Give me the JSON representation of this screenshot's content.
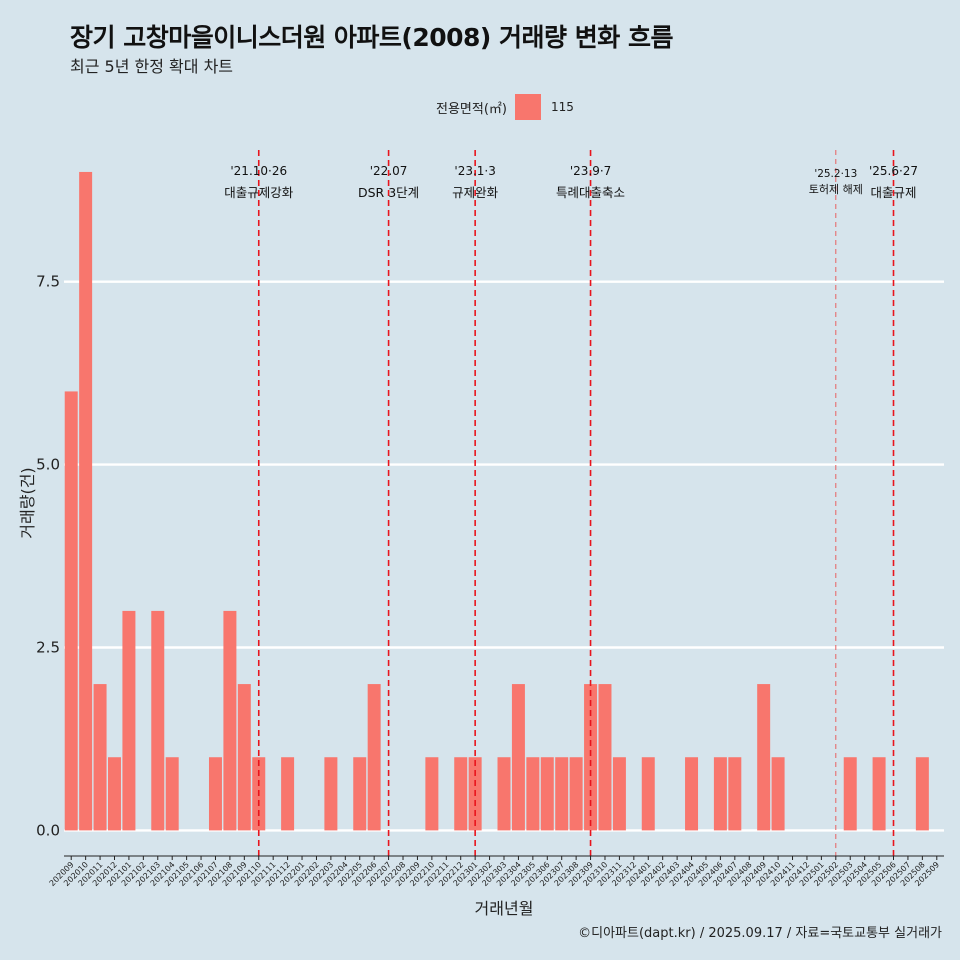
{
  "header": {
    "title": "장기 고창마을이니스더원 아파트(2008) 거래량 변화 흐름",
    "subtitle": "최근 5년 한정 확대 차트"
  },
  "legend": {
    "title": "전용면적(㎡)",
    "label": "115",
    "color": "#f8766d"
  },
  "footer": {
    "caption": "©디아파트(dapt.kr) / 2025.09.17 / 자료=국토교통부 실거래가"
  },
  "chart_data": {
    "type": "bar",
    "xlabel": "거래년월",
    "ylabel": "거래량(건)",
    "ylim": [
      -0.35,
      9.3
    ],
    "yticks": [
      0.0,
      2.5,
      5.0,
      7.5
    ],
    "ytick_labels": [
      "0.0",
      "2.5",
      "5.0",
      "7.5"
    ],
    "grid": true,
    "categories": [
      "202009",
      "202010",
      "202011",
      "202012",
      "202101",
      "202102",
      "202103",
      "202104",
      "202105",
      "202106",
      "202107",
      "202108",
      "202109",
      "202110",
      "202111",
      "202112",
      "202201",
      "202202",
      "202203",
      "202204",
      "202205",
      "202206",
      "202207",
      "202208",
      "202209",
      "202210",
      "202211",
      "202212",
      "202301",
      "202302",
      "202303",
      "202304",
      "202305",
      "202306",
      "202307",
      "202308",
      "202309",
      "202310",
      "202311",
      "202312",
      "202401",
      "202402",
      "202403",
      "202404",
      "202405",
      "202406",
      "202407",
      "202408",
      "202409",
      "202410",
      "202411",
      "202412",
      "202501",
      "202502",
      "202503",
      "202504",
      "202505",
      "202506",
      "202507",
      "202508",
      "202509"
    ],
    "series": [
      {
        "name": "115",
        "values": [
          6,
          9,
          2,
          1,
          3,
          0,
          3,
          1,
          0,
          0,
          1,
          3,
          2,
          1,
          0,
          1,
          0,
          0,
          1,
          0,
          1,
          2,
          0,
          0,
          0,
          1,
          0,
          1,
          1,
          0,
          1,
          2,
          1,
          1,
          1,
          1,
          2,
          2,
          1,
          0,
          1,
          0,
          0,
          1,
          0,
          1,
          1,
          0,
          2,
          1,
          0,
          0,
          0,
          0,
          1,
          0,
          1,
          0,
          0,
          1,
          0
        ]
      }
    ],
    "events": [
      {
        "category": "202110",
        "date": "'21.10·26",
        "label": "대출규제강화",
        "style": "bold"
      },
      {
        "category": "202207",
        "date": "'22.07",
        "label": "DSR 3단계",
        "style": "bold"
      },
      {
        "category": "202301",
        "date": "'23.1·3",
        "label": "규제완화",
        "style": "bold"
      },
      {
        "category": "202309",
        "date": "'23.9·7",
        "label": "특례대출축소",
        "style": "bold"
      },
      {
        "category": "202502",
        "date": "'25.2·13",
        "label": "토허제 해제",
        "style": "thin"
      },
      {
        "category": "202506",
        "date": "'25.6·27",
        "label": "대출규제",
        "style": "bold"
      }
    ]
  }
}
